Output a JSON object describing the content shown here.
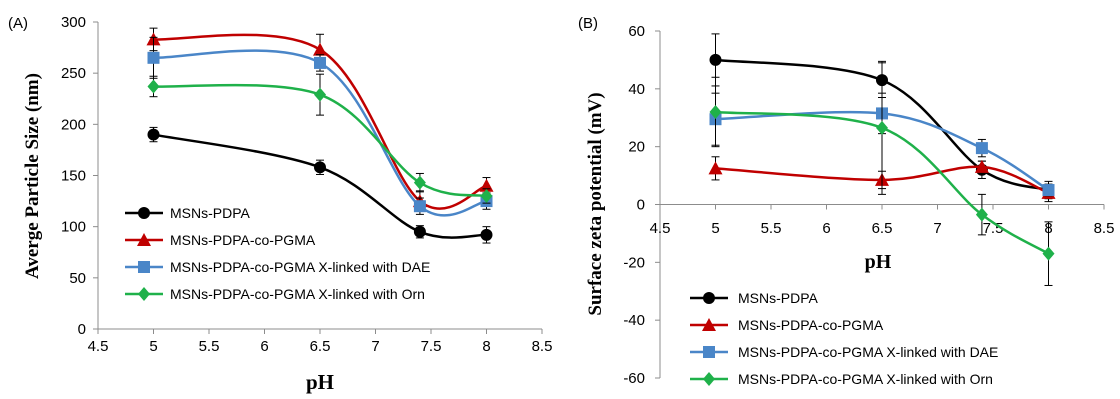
{
  "chart_data": [
    {
      "type": "line",
      "panel_label": "(A)",
      "xlabel": "pH",
      "ylabel": "Averge Particle Size (nm)",
      "xlim": [
        4.5,
        8.5
      ],
      "ylim": [
        0,
        300
      ],
      "xticks": [
        "4.5",
        "5",
        "5.5",
        "6",
        "6.5",
        "7",
        "7.5",
        "8",
        "8.5"
      ],
      "yticks": [
        "0",
        "50",
        "100",
        "150",
        "200",
        "250",
        "300"
      ],
      "legend_position": "bottom-left",
      "grid": false,
      "x": [
        5,
        6.5,
        7.4,
        8
      ],
      "series": [
        {
          "name": "MSNs-PDPA",
          "values": [
            190,
            158,
            95,
            92
          ],
          "errors": [
            7,
            7,
            6,
            8
          ],
          "color": "#000000",
          "marker": "circle"
        },
        {
          "name": "MSNs-PDPA-co-PGMA",
          "values": [
            283,
            273,
            125,
            140
          ],
          "errors": [
            11,
            15,
            10,
            8
          ],
          "color": "#c00000",
          "marker": "triangle"
        },
        {
          "name": "MSNs-PDPA-co-PGMA X-linked with DAE",
          "values": [
            265,
            260,
            120,
            125
          ],
          "errors": [
            20,
            8,
            8,
            8
          ],
          "color": "#4a86c8",
          "marker": "square"
        },
        {
          "name": "MSNs-PDPA-co-PGMA X-linked with Orn",
          "values": [
            237,
            229,
            143,
            130
          ],
          "errors": [
            10,
            20,
            9,
            7
          ],
          "color": "#1fb14a",
          "marker": "diamond"
        }
      ]
    },
    {
      "type": "line",
      "panel_label": "(B)",
      "xlabel": "pH",
      "ylabel": "Surface zeta potential (mV)",
      "xlim": [
        4.5,
        8.5
      ],
      "ylim": [
        -60,
        60
      ],
      "xticks": [
        "4.5",
        "5",
        "5.5",
        "6",
        "6.5",
        "7",
        "7.5",
        "8",
        "8.5"
      ],
      "yticks": [
        "-60",
        "-40",
        "-20",
        "0",
        "20",
        "40",
        "60"
      ],
      "legend_position": "bottom-left",
      "grid": false,
      "x": [
        5,
        6.5,
        7.4,
        8
      ],
      "series": [
        {
          "name": "MSNs-PDPA",
          "values": [
            50,
            43,
            12,
            5
          ],
          "errors": [
            9,
            6,
            3,
            3
          ],
          "color": "#000000",
          "marker": "circle"
        },
        {
          "name": "MSNs-PDPA-co-PGMA",
          "values": [
            12.5,
            8.5,
            13,
            4
          ],
          "errors": [
            4,
            3,
            2,
            3
          ],
          "color": "#c00000",
          "marker": "triangle"
        },
        {
          "name": "MSNs-PDPA-co-PGMA X-linked with DAE",
          "values": [
            29.5,
            31.5,
            19.5,
            5
          ],
          "errors": [
            9,
            7,
            3,
            2
          ],
          "color": "#4a86c8",
          "marker": "square"
        },
        {
          "name": "MSNs-PDPA-co-PGMA X-linked with Orn",
          "values": [
            32,
            26.5,
            -3.5,
            -17
          ],
          "errors": [
            12,
            23,
            7,
            11
          ],
          "color": "#1fb14a",
          "marker": "diamond"
        }
      ]
    }
  ]
}
